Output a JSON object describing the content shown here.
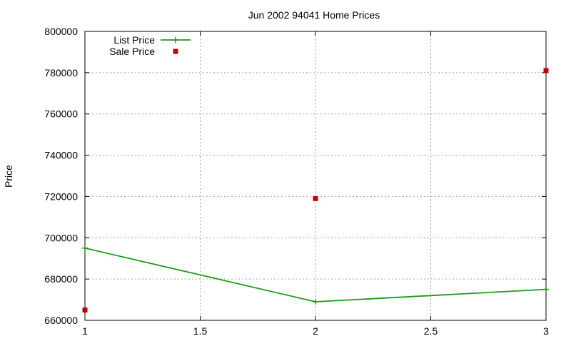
{
  "chart_data": {
    "type": "line",
    "title": "Jun 2002 94041 Home Prices",
    "xlabel": "",
    "ylabel": "Price",
    "xlim": [
      1,
      3
    ],
    "ylim": [
      660000,
      800000
    ],
    "x_ticks": [
      1,
      1.5,
      2,
      2.5,
      3
    ],
    "x_tick_labels": [
      "1",
      "1.5",
      "2",
      "2.5",
      "3"
    ],
    "y_ticks": [
      660000,
      680000,
      700000,
      720000,
      740000,
      760000,
      780000,
      800000
    ],
    "y_tick_labels": [
      "660000",
      "680000",
      "700000",
      "720000",
      "740000",
      "760000",
      "780000",
      "800000"
    ],
    "grid": true,
    "legend_position": "top-left",
    "series": [
      {
        "name": "List Price",
        "style": "line-with-plus-markers",
        "color": "#1a9a1a",
        "x": [
          1,
          2,
          3
        ],
        "values": [
          695000,
          669000,
          675000
        ]
      },
      {
        "name": "Sale Price",
        "style": "square-markers",
        "color": "#c00000",
        "x": [
          1,
          2,
          3
        ],
        "values": [
          665000,
          719000,
          781000
        ]
      }
    ]
  }
}
